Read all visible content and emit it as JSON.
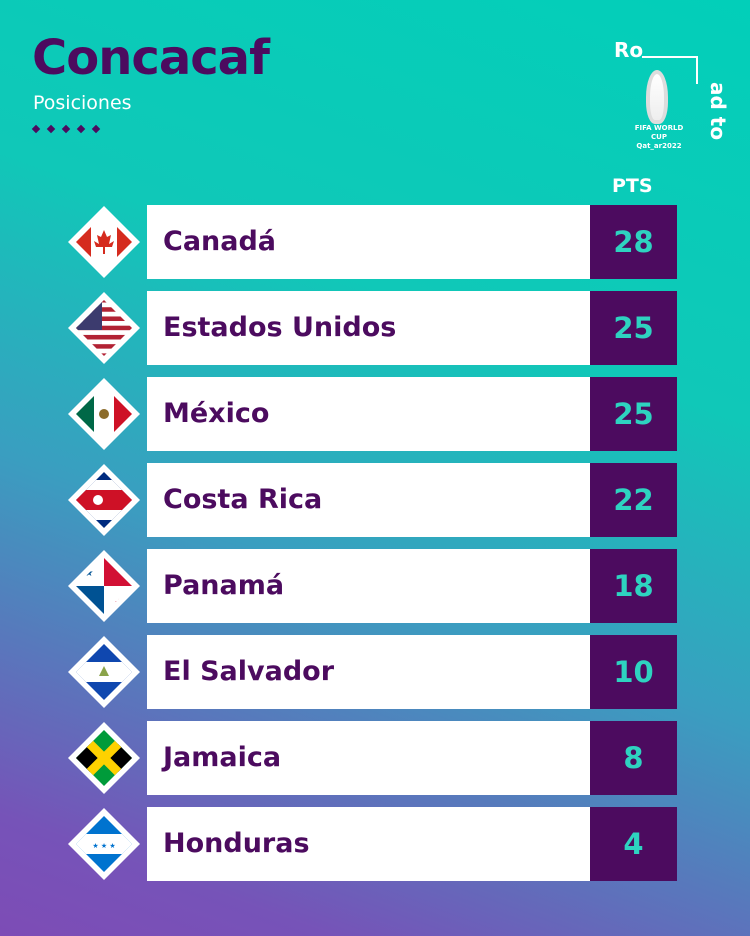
{
  "header": {
    "title": "Concacaf",
    "subtitle": "Posiciones"
  },
  "logo": {
    "ro": "Ro",
    "adto": "ad to",
    "line1": "FIFA WORLD CUP",
    "line2": "Qat_ar2022"
  },
  "table": {
    "pts_label": "PTS",
    "rows": [
      {
        "team": "Canadá",
        "pts": "28",
        "flag": "canada"
      },
      {
        "team": "Estados Unidos",
        "pts": "25",
        "flag": "usa"
      },
      {
        "team": "México",
        "pts": "25",
        "flag": "mexico"
      },
      {
        "team": "Costa Rica",
        "pts": "22",
        "flag": "costa-rica"
      },
      {
        "team": "Panamá",
        "pts": "18",
        "flag": "panama"
      },
      {
        "team": "El Salvador",
        "pts": "10",
        "flag": "el-salvador"
      },
      {
        "team": "Jamaica",
        "pts": "8",
        "flag": "jamaica"
      },
      {
        "team": "Honduras",
        "pts": "4",
        "flag": "honduras"
      }
    ]
  },
  "colors": {
    "primary": "#4c0b5f",
    "score_text": "#2ed3c0",
    "bg_top": "#02cfb9",
    "bg_bottom": "#7d4cb6"
  }
}
